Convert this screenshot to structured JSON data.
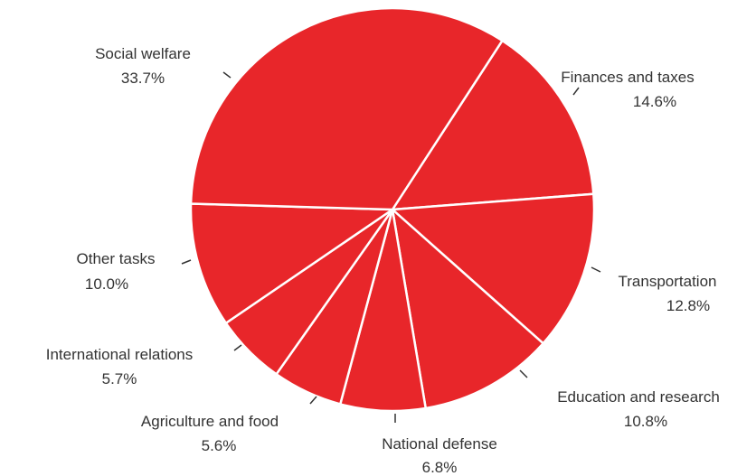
{
  "chart_data": {
    "type": "pie",
    "title": "",
    "color": "#e8262a",
    "separator_color": "#ffffff",
    "label_color": "#333333",
    "start_angle_deg": 33,
    "direction": "clockwise",
    "slices": [
      {
        "name": "Finances and taxes",
        "value": 14.6,
        "label": "14.6%"
      },
      {
        "name": "Transportation",
        "value": 12.8,
        "label": "12.8%"
      },
      {
        "name": "Education and research",
        "value": 10.8,
        "label": "10.8%"
      },
      {
        "name": "National defense",
        "value": 6.8,
        "label": "6.8%"
      },
      {
        "name": "Agriculture and food",
        "value": 5.6,
        "label": "5.6%"
      },
      {
        "name": "International relations",
        "value": 5.7,
        "label": "5.7%"
      },
      {
        "name": "Other tasks",
        "value": 10.0,
        "label": "10.0%"
      },
      {
        "name": "Social welfare",
        "value": 33.7,
        "label": "33.7%"
      }
    ]
  }
}
